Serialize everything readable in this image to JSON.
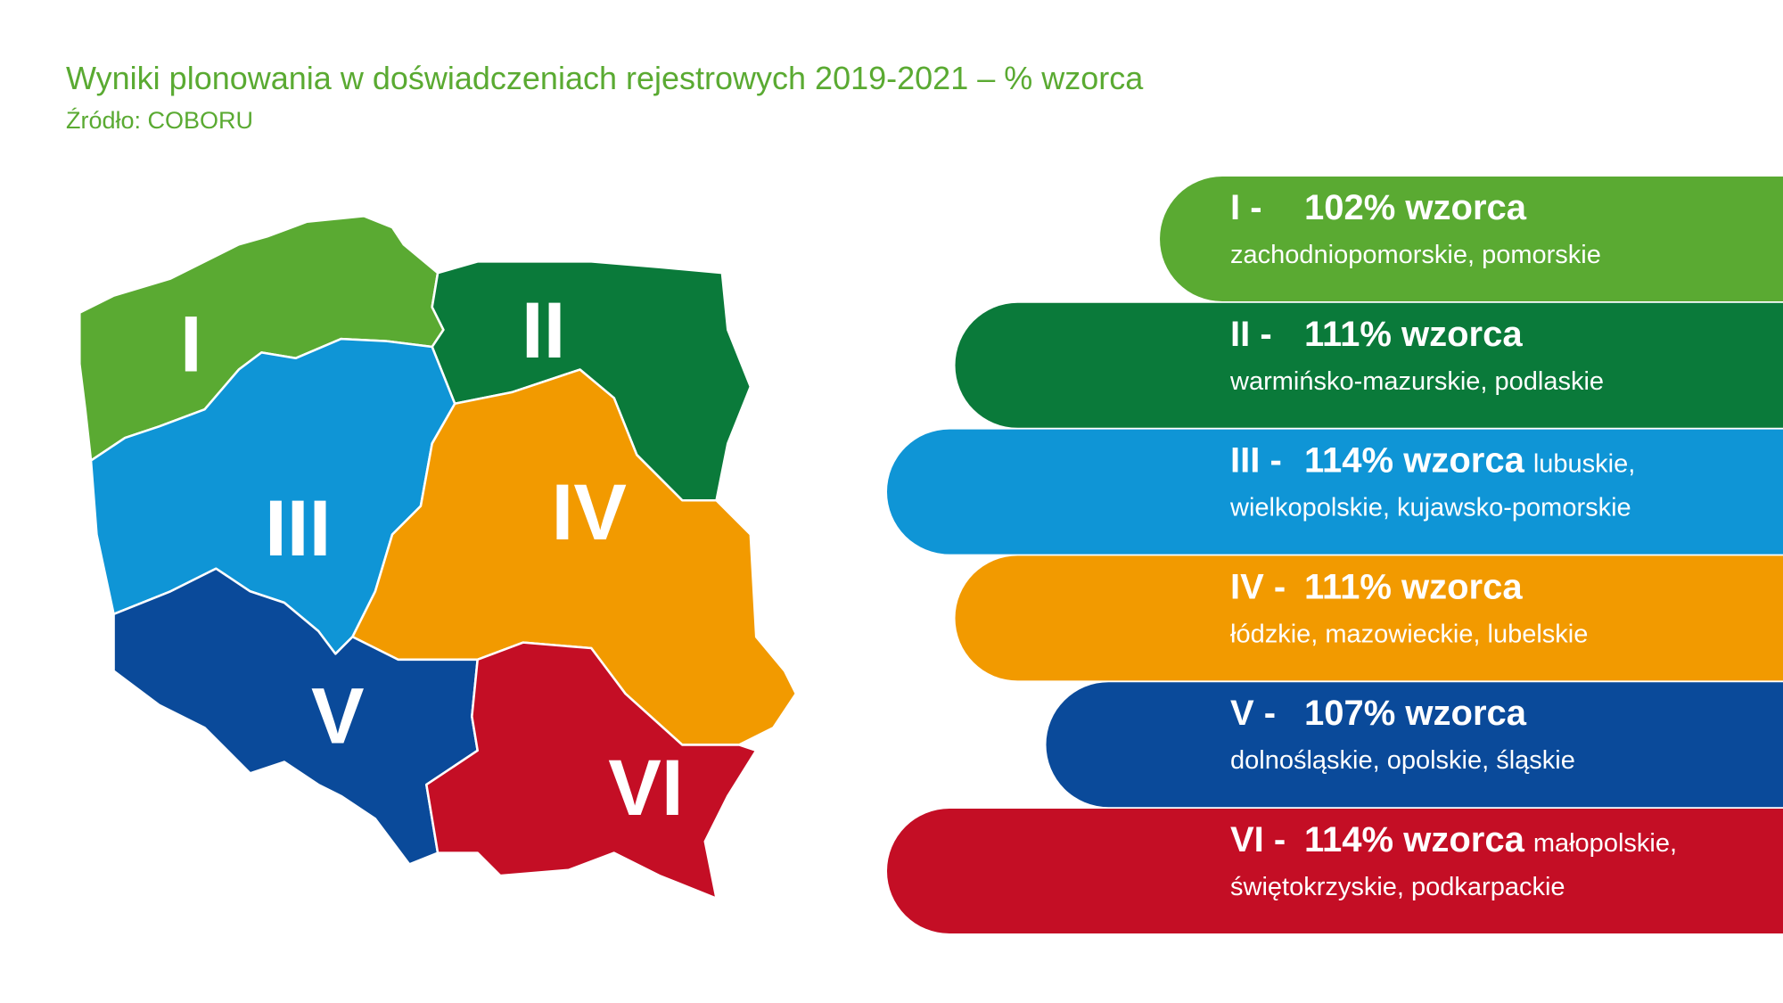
{
  "header": {
    "title": "Wyniki plonowania w doświadczeniach rejestrowych 2019-2021 – % wzorca",
    "source": "Źródło: COBORU"
  },
  "regions": [
    {
      "map_label": "I",
      "numeral": "I -",
      "value": 102,
      "value_label": "102% wzorca",
      "provinces": "zachodniopomorskie, pomorskie",
      "color": "#5aaa32"
    },
    {
      "map_label": "II",
      "numeral": "II -",
      "value": 111,
      "value_label": "111% wzorca",
      "provinces": "warmińsko-mazurskie, podlaskie",
      "color": "#0a7a3a"
    },
    {
      "map_label": "III",
      "numeral": "III -",
      "value": 114,
      "value_label": "114% wzorca",
      "provinces_inline": "lubuskie,",
      "provinces": "wielkopolskie, kujawsko-pomorskie",
      "color": "#0f95d6"
    },
    {
      "map_label": "IV",
      "numeral": "IV -",
      "value": 111,
      "value_label": "111% wzorca",
      "provinces": "łódzkie, mazowieckie, lubelskie",
      "color": "#f29a00"
    },
    {
      "map_label": "V",
      "numeral": "V -",
      "value": 107,
      "value_label": "107% wzorca",
      "provinces": "dolnośląskie, opolskie, śląskie",
      "color": "#0a4a9a"
    },
    {
      "map_label": "VI",
      "numeral": "VI -",
      "value": 114,
      "value_label": "114% wzorca",
      "provinces_inline": "małopolskie,",
      "provinces": "świętokrzyskie, podkarpackie",
      "color": "#c40e25"
    }
  ]
}
